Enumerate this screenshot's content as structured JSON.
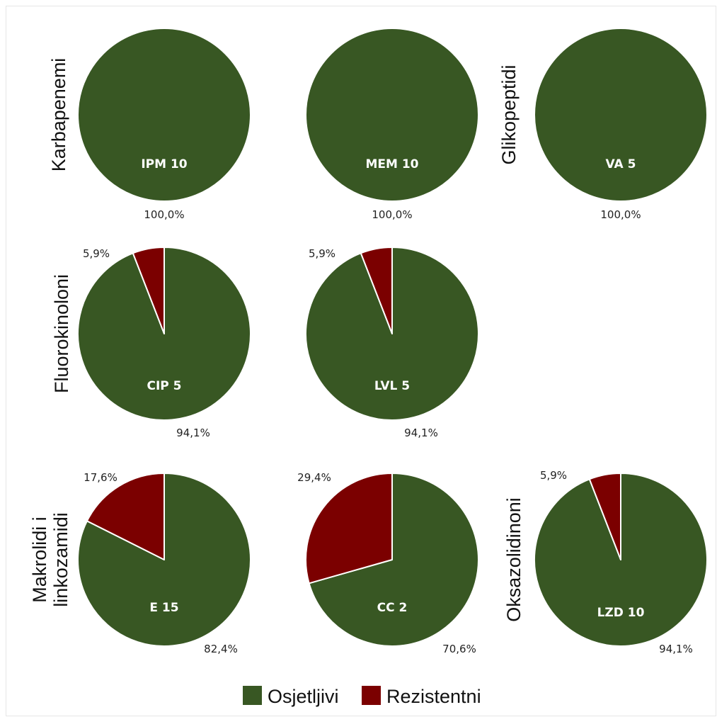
{
  "chart_data": {
    "type": "pie",
    "colors": {
      "susceptible": "#385723",
      "resistant": "#7b0000",
      "border": "#ffffff"
    },
    "legend": {
      "position": "bottom",
      "items": [
        {
          "label": "Osjetljivi",
          "color": "#385723"
        },
        {
          "label": "Rezistentni",
          "color": "#7b0000"
        }
      ]
    },
    "rows": [
      {
        "label_lines": [
          "Karbapenemi"
        ]
      },
      {
        "label_lines": [
          "Fluorokinoloni"
        ]
      },
      {
        "label_lines": [
          "Makrolidi i",
          "linkozamidi"
        ]
      }
    ],
    "extra_labels": [
      {
        "label_lines": [
          "Glikopeptidi"
        ]
      },
      {
        "label_lines": [
          "Oksazolidinoni"
        ]
      }
    ],
    "pies": [
      {
        "name": "IPM 10",
        "susceptible": 100.0,
        "resistant": 0,
        "susceptible_label": "100,0%",
        "resistant_label": ""
      },
      {
        "name": "MEM 10",
        "susceptible": 100.0,
        "resistant": 0,
        "susceptible_label": "100,0%",
        "resistant_label": ""
      },
      {
        "name": "VA 5",
        "susceptible": 100.0,
        "resistant": 0,
        "susceptible_label": "100,0%",
        "resistant_label": ""
      },
      {
        "name": "CIP 5",
        "susceptible": 94.1,
        "resistant": 5.9,
        "susceptible_label": "94,1%",
        "resistant_label": "5,9%"
      },
      {
        "name": "LVL 5",
        "susceptible": 94.1,
        "resistant": 5.9,
        "susceptible_label": "94,1%",
        "resistant_label": "5,9%"
      },
      {
        "name": "E 15",
        "susceptible": 82.4,
        "resistant": 17.6,
        "susceptible_label": "82,4%",
        "resistant_label": "17,6%"
      },
      {
        "name": "CC 2",
        "susceptible": 70.6,
        "resistant": 29.4,
        "susceptible_label": "70,6%",
        "resistant_label": "29,4%"
      },
      {
        "name": "LZD 10",
        "susceptible": 94.1,
        "resistant": 5.9,
        "susceptible_label": "94,1%",
        "resistant_label": "5,9%"
      }
    ]
  }
}
